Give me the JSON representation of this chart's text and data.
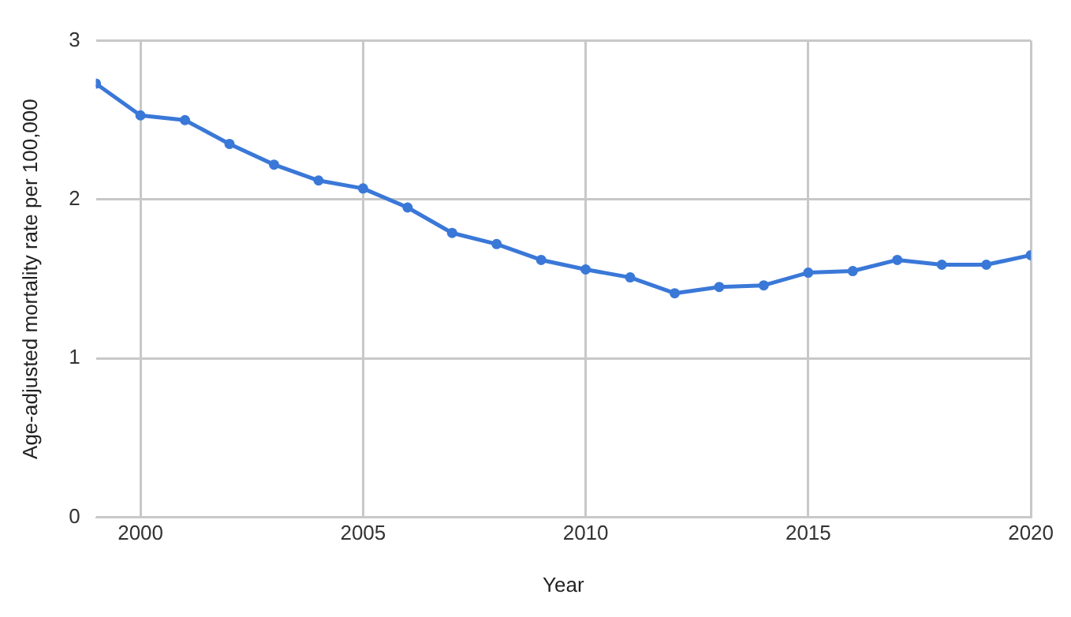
{
  "chart_data": {
    "type": "line",
    "xlabel": "Year",
    "ylabel": "Age-adjusted mortality rate per 100,000",
    "x": [
      1999,
      2000,
      2001,
      2002,
      2003,
      2004,
      2005,
      2006,
      2007,
      2008,
      2009,
      2010,
      2011,
      2012,
      2013,
      2014,
      2015,
      2016,
      2017,
      2018,
      2019,
      2020
    ],
    "series": [
      {
        "color": "#3a78d8",
        "values": [
          2.73,
          2.53,
          2.5,
          2.35,
          2.22,
          2.12,
          2.07,
          1.95,
          1.79,
          1.72,
          1.62,
          1.56,
          1.51,
          1.41,
          1.45,
          1.46,
          1.54,
          1.55,
          1.62,
          1.59,
          1.59,
          1.65
        ]
      }
    ],
    "xlim": [
      1999,
      2020
    ],
    "xticks": [
      2000,
      2005,
      2010,
      2015,
      2020
    ],
    "ylim": [
      0,
      3
    ],
    "yticks": [
      0,
      1,
      2,
      3
    ],
    "grid": true,
    "legend": false,
    "marker": "circle",
    "line_style": "solid"
  }
}
